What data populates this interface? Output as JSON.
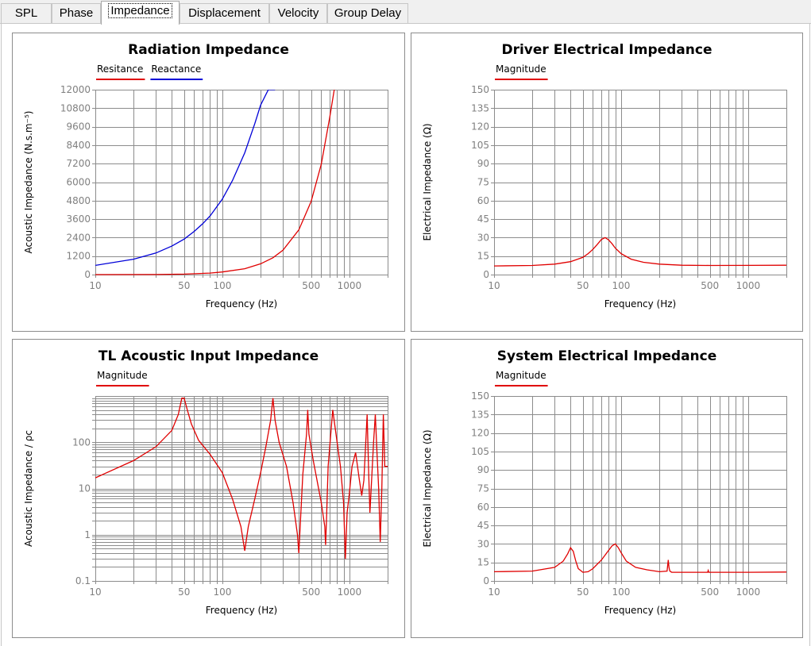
{
  "tabs": [
    {
      "label": "SPL",
      "active": false
    },
    {
      "label": "Phase",
      "active": false
    },
    {
      "label": "Impedance",
      "active": true
    },
    {
      "label": "Displacement",
      "active": false
    },
    {
      "label": "Velocity",
      "active": false
    },
    {
      "label": "Group Delay",
      "active": false
    }
  ],
  "colors": {
    "red": "#e00000",
    "blue": "#0000d8",
    "grid": "#8c8c8c",
    "tick_text": "#808080"
  },
  "chart_data": [
    {
      "type": "line",
      "title": "Radiation Impedance",
      "xlabel": "Frequency (Hz)",
      "ylabel": "Acoustic Impedance (N.s.m⁻⁵)",
      "xscale": "log",
      "xlim": [
        10,
        2000
      ],
      "xticklabels": [
        [
          "10",
          10
        ],
        [
          "50",
          50
        ],
        [
          "100",
          100
        ],
        [
          "500",
          500
        ],
        [
          "1000",
          1000
        ]
      ],
      "yscale": "linear",
      "ylim": [
        0,
        12000
      ],
      "yticks": [
        0,
        1200,
        2400,
        3600,
        4800,
        6000,
        7200,
        8400,
        9600,
        10800,
        12000
      ],
      "grid": true,
      "series": [
        {
          "name": "Resitance",
          "color": "#e00000",
          "x": [
            10,
            30,
            50,
            80,
            100,
            150,
            200,
            250,
            300,
            400,
            500,
            600,
            700,
            760
          ],
          "y": [
            0,
            5,
            30,
            100,
            170,
            380,
            700,
            1090,
            1580,
            2900,
            4750,
            7150,
            10200,
            12000
          ]
        },
        {
          "name": "Reactance",
          "color": "#0000d8",
          "x": [
            10,
            20,
            30,
            40,
            50,
            60,
            70,
            80,
            100,
            120,
            150,
            180,
            200,
            230,
            260
          ],
          "y": [
            600,
            1000,
            1400,
            1850,
            2300,
            2800,
            3300,
            3800,
            4900,
            6100,
            7900,
            9800,
            11000,
            12000,
            12000
          ]
        }
      ]
    },
    {
      "type": "line",
      "title": "Driver Electrical Impedance",
      "xlabel": "Frequency (Hz)",
      "ylabel": "Electrical Impedance (Ω)",
      "xscale": "log",
      "xlim": [
        10,
        2000
      ],
      "xticklabels": [
        [
          "10",
          10
        ],
        [
          "50",
          50
        ],
        [
          "100",
          100
        ],
        [
          "500",
          500
        ],
        [
          "1000",
          1000
        ]
      ],
      "yscale": "linear",
      "ylim": [
        0,
        150
      ],
      "yticks": [
        0,
        15,
        30,
        45,
        60,
        75,
        90,
        105,
        120,
        135,
        150
      ],
      "grid": true,
      "series": [
        {
          "name": "Magnitude",
          "color": "#e00000",
          "x": [
            10,
            20,
            30,
            40,
            50,
            55,
            60,
            65,
            70,
            75,
            80,
            85,
            90,
            100,
            120,
            150,
            200,
            300,
            500,
            1000,
            2000
          ],
          "y": [
            7.0,
            7.4,
            8.5,
            10.5,
            14,
            17,
            20.5,
            24.5,
            28.5,
            30,
            28,
            25,
            21.5,
            17,
            12.5,
            10,
            8.5,
            7.6,
            7.4,
            7.5,
            7.6
          ]
        }
      ]
    },
    {
      "type": "line",
      "title": "TL Acoustic Input Impedance",
      "xlabel": "Frequency (Hz)",
      "ylabel": "Acoustic Impedance / ρc",
      "xscale": "log",
      "xlim": [
        10,
        2000
      ],
      "xticklabels": [
        [
          "10",
          10
        ],
        [
          "50",
          50
        ],
        [
          "100",
          100
        ],
        [
          "500",
          500
        ],
        [
          "1000",
          1000
        ]
      ],
      "yscale": "log",
      "ylim": [
        0.1,
        1000
      ],
      "yticklabels": [
        [
          "0.1",
          0.1
        ],
        [
          "1",
          1
        ],
        [
          "10",
          10
        ],
        [
          "100",
          100
        ]
      ],
      "grid": true,
      "series": [
        {
          "name": "Magnitude",
          "color": "#e00000",
          "x": [
            10,
            20,
            30,
            40,
            45,
            48,
            50,
            53,
            57,
            65,
            80,
            100,
            120,
            140,
            150,
            160,
            180,
            200,
            220,
            240,
            250,
            260,
            280,
            320,
            360,
            390,
            400,
            410,
            430,
            460,
            470,
            480,
            520,
            600,
            640,
            650,
            660,
            680,
            740,
            800,
            850,
            900,
            930,
            960,
            1000,
            1050,
            1120,
            1200,
            1250,
            1300,
            1380,
            1420,
            1450,
            1550,
            1600,
            1650,
            1700,
            1750,
            1800,
            1850,
            1900,
            2000
          ],
          "y": [
            17,
            40,
            80,
            180,
            400,
            900,
            900,
            500,
            250,
            110,
            55,
            22,
            6,
            1.5,
            0.45,
            1.5,
            6,
            22,
            80,
            300,
            900,
            300,
            100,
            30,
            5,
            1.0,
            0.4,
            1.5,
            20,
            150,
            500,
            150,
            40,
            5,
            1.5,
            0.6,
            2,
            30,
            500,
            100,
            30,
            5,
            0.3,
            3,
            8,
            30,
            60,
            15,
            7,
            15,
            400,
            20,
            3,
            100,
            400,
            60,
            10,
            0.7,
            10,
            400,
            30,
            30
          ]
        }
      ]
    },
    {
      "type": "line",
      "title": "System Electrical Impedance",
      "xlabel": "Frequency (Hz)",
      "ylabel": "Electrical Impedance (Ω)",
      "xscale": "log",
      "xlim": [
        10,
        2000
      ],
      "xticklabels": [
        [
          "10",
          10
        ],
        [
          "50",
          50
        ],
        [
          "100",
          100
        ],
        [
          "500",
          500
        ],
        [
          "1000",
          1000
        ]
      ],
      "yscale": "linear",
      "ylim": [
        0,
        150
      ],
      "yticks": [
        0,
        15,
        30,
        45,
        60,
        75,
        90,
        105,
        120,
        135,
        150
      ],
      "grid": true,
      "series": [
        {
          "name": "Magnitude",
          "color": "#e00000",
          "x": [
            10,
            20,
            30,
            35,
            38,
            40,
            42,
            44,
            46,
            50,
            55,
            60,
            70,
            80,
            85,
            90,
            95,
            100,
            110,
            130,
            160,
            200,
            230,
            235,
            238,
            242,
            250,
            300,
            400,
            480,
            485,
            490,
            500,
            700,
            1000,
            2000
          ],
          "y": [
            7.5,
            8,
            11,
            16,
            22,
            27,
            24,
            16,
            10,
            7,
            7.5,
            10,
            17,
            25,
            28.5,
            30,
            27,
            23,
            16,
            11,
            9,
            7.5,
            8,
            17,
            11,
            8,
            7,
            7,
            7,
            7,
            8.5,
            7,
            7,
            7,
            7,
            7.2
          ]
        }
      ]
    }
  ]
}
